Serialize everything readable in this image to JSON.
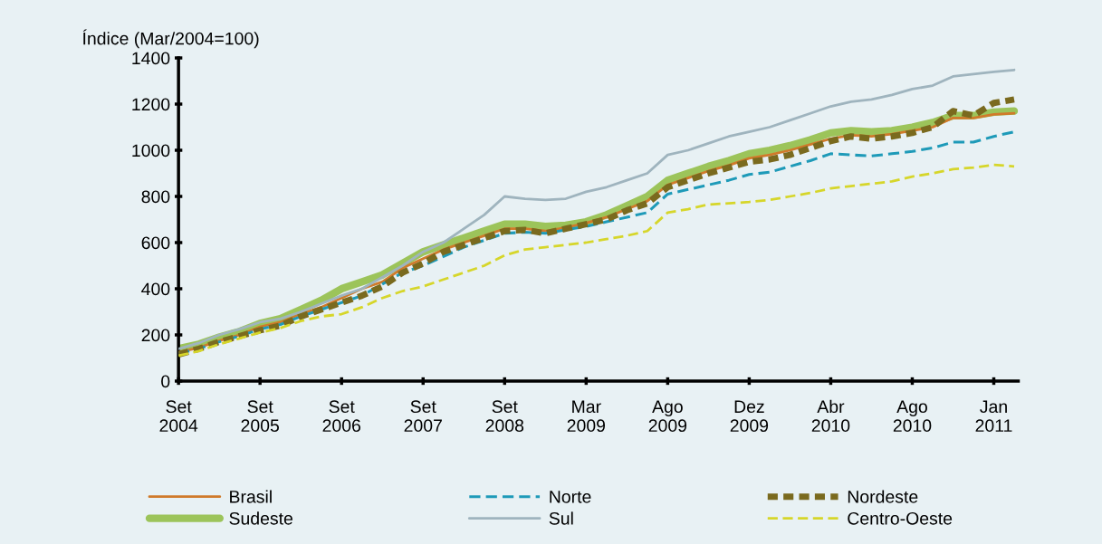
{
  "chart_data": {
    "type": "line",
    "ylabel": "Índice (Mar/2004=100)",
    "categories": [
      "Set\n2004",
      null,
      null,
      null,
      "Set\n2005",
      null,
      null,
      null,
      "Set\n2006",
      null,
      null,
      null,
      "Set\n2007",
      null,
      null,
      null,
      "Set\n2008",
      null,
      null,
      null,
      "Mar\n2009",
      null,
      null,
      null,
      "Ago\n2009",
      null,
      null,
      null,
      "Dez\n2009",
      null,
      null,
      null,
      "Abr\n2010",
      null,
      null,
      null,
      "Ago\n2010",
      null,
      null,
      null,
      "Jan\n2011",
      null
    ],
    "ylim": [
      0,
      1400
    ],
    "yticks": [
      0,
      200,
      400,
      600,
      800,
      1000,
      1200,
      1400
    ],
    "grid": false,
    "legend": "bottom",
    "marker": "none",
    "series": [
      {
        "name": "Sudeste",
        "color": "#9cc45a",
        "line_style": "solid",
        "values": [
          140,
          160,
          190,
          215,
          250,
          270,
          310,
          350,
          400,
          430,
          460,
          510,
          560,
          590,
          620,
          650,
          680,
          680,
          670,
          675,
          690,
          720,
          760,
          800,
          870,
          900,
          930,
          955,
          985,
          1000,
          1020,
          1045,
          1075,
          1085,
          1080,
          1085,
          1100,
          1120,
          1150,
          1150,
          1165,
          1170
        ]
      },
      {
        "name": "Brasil",
        "color": "#d07a2a",
        "line_style": "solid",
        "values": [
          125,
          145,
          175,
          200,
          235,
          255,
          290,
          320,
          360,
          400,
          430,
          490,
          530,
          570,
          600,
          630,
          660,
          660,
          650,
          665,
          685,
          710,
          745,
          780,
          850,
          880,
          910,
          935,
          965,
          980,
          1000,
          1025,
          1050,
          1065,
          1060,
          1070,
          1085,
          1100,
          1140,
          1140,
          1155,
          1160
        ]
      },
      {
        "name": "Norte",
        "color": "#1e9ab8",
        "line_style": "dashed",
        "values": [
          120,
          140,
          170,
          195,
          225,
          245,
          280,
          310,
          340,
          370,
          420,
          470,
          500,
          540,
          580,
          610,
          640,
          645,
          640,
          655,
          670,
          690,
          710,
          730,
          810,
          830,
          850,
          870,
          895,
          905,
          930,
          955,
          985,
          980,
          975,
          985,
          995,
          1010,
          1035,
          1035,
          1060,
          1080
        ]
      },
      {
        "name": "Nordeste",
        "color": "#7a6a1e",
        "line_style": "dashed",
        "values": [
          115,
          140,
          170,
          195,
          220,
          240,
          280,
          310,
          340,
          370,
          410,
          470,
          510,
          560,
          590,
          620,
          650,
          655,
          640,
          660,
          680,
          700,
          740,
          770,
          840,
          870,
          900,
          925,
          950,
          960,
          980,
          1010,
          1040,
          1060,
          1050,
          1060,
          1075,
          1100,
          1170,
          1150,
          1205,
          1220
        ]
      },
      {
        "name": "Sul",
        "color": "#9fb4be",
        "line_style": "solid",
        "values": [
          140,
          165,
          200,
          225,
          255,
          270,
          300,
          335,
          370,
          400,
          450,
          500,
          560,
          600,
          660,
          720,
          800,
          790,
          785,
          790,
          820,
          840,
          870,
          900,
          980,
          1000,
          1030,
          1060,
          1080,
          1100,
          1130,
          1160,
          1190,
          1210,
          1220,
          1240,
          1265,
          1280,
          1320,
          1330,
          1340,
          1348
        ]
      },
      {
        "name": "Centro-Oeste",
        "color": "#d6d62a",
        "line_style": "dashed",
        "values": [
          110,
          130,
          160,
          185,
          210,
          230,
          260,
          280,
          290,
          320,
          360,
          390,
          410,
          440,
          470,
          500,
          545,
          570,
          580,
          590,
          600,
          615,
          630,
          650,
          730,
          745,
          765,
          770,
          776,
          785,
          800,
          815,
          835,
          845,
          855,
          865,
          886,
          900,
          918,
          925,
          937,
          930
        ]
      }
    ]
  }
}
